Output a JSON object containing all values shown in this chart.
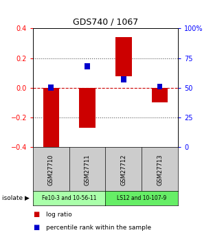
{
  "title": "GDS740 / 1067",
  "samples": [
    "GSM27710",
    "GSM27711",
    "GSM27712",
    "GSM27713"
  ],
  "log_ratios": [
    -0.42,
    -0.27,
    0.34,
    -0.1
  ],
  "log_ratio_bottoms": [
    0.0,
    0.0,
    0.075,
    0.0
  ],
  "percentile_ranks_raw": [
    50,
    68,
    57,
    51
  ],
  "ylim": [
    -0.4,
    0.4
  ],
  "right_ylim": [
    0,
    100
  ],
  "right_yticks": [
    0,
    25,
    50,
    75,
    100
  ],
  "right_yticklabels": [
    "0",
    "25",
    "50",
    "75",
    "100%"
  ],
  "left_yticks": [
    -0.4,
    -0.2,
    0.0,
    0.2,
    0.4
  ],
  "hlines": [
    0.2,
    -0.2
  ],
  "isolate_groups": [
    {
      "label": "Fe10-3 and 10-56-11",
      "samples": [
        0,
        1
      ],
      "color": "#aaffaa"
    },
    {
      "label": "LS12 and 10-107-9",
      "samples": [
        2,
        3
      ],
      "color": "#66ee66"
    }
  ],
  "bar_color": "#cc0000",
  "percentile_color": "#0000cc",
  "zero_line_color": "#cc0000",
  "dotted_line_color": "#555555",
  "sample_box_color": "#cccccc",
  "bg_color": "#ffffff",
  "legend_items": [
    "log ratio",
    "percentile rank within the sample"
  ],
  "isolate_label": "isolate"
}
